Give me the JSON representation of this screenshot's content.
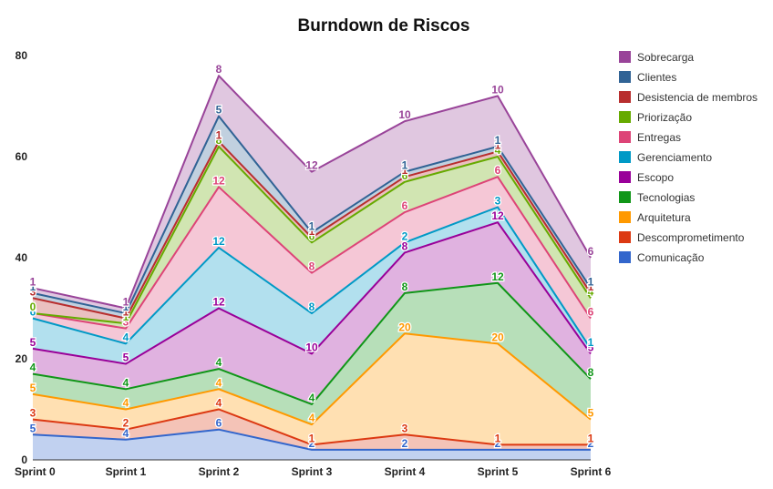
{
  "chart_data": {
    "type": "area",
    "stacked": true,
    "title": "Burndown de Riscos",
    "xlabel": "",
    "ylabel": "",
    "categories": [
      "Sprint 0",
      "Sprint 1",
      "Sprint 2",
      "Sprint 3",
      "Sprint 4",
      "Sprint 5",
      "Sprint 6"
    ],
    "ylim": [
      0,
      80
    ],
    "yticks": [
      0,
      20,
      40,
      60,
      80
    ],
    "grid": false,
    "legend_position": "right",
    "series": [
      {
        "name": "Comunicação",
        "color": "#3366cc",
        "values": [
          5,
          4,
          6,
          2,
          2,
          2,
          2
        ]
      },
      {
        "name": "Descomprometimento",
        "color": "#dc3912",
        "values": [
          3,
          2,
          4,
          1,
          3,
          1,
          1
        ]
      },
      {
        "name": "Arquitetura",
        "color": "#ff9900",
        "values": [
          5,
          4,
          4,
          4,
          20,
          20,
          5
        ]
      },
      {
        "name": "Tecnologias",
        "color": "#109618",
        "values": [
          4,
          4,
          4,
          4,
          8,
          12,
          8
        ]
      },
      {
        "name": "Escopo",
        "color": "#990099",
        "values": [
          5,
          5,
          12,
          10,
          8,
          12,
          5
        ]
      },
      {
        "name": "Gerenciamento",
        "color": "#0099c6",
        "values": [
          6,
          4,
          12,
          8,
          2,
          3,
          1
        ]
      },
      {
        "name": "Entregas",
        "color": "#dd4477",
        "values": [
          1,
          3,
          12,
          8,
          6,
          6,
          6
        ]
      },
      {
        "name": "Priorização",
        "color": "#66aa00",
        "values": [
          0,
          1,
          8,
          6,
          6,
          4,
          4
        ]
      },
      {
        "name": "Desistencia de membros",
        "color": "#b82e2e",
        "values": [
          3,
          1,
          1,
          1,
          1,
          1,
          1
        ]
      },
      {
        "name": "Clientes",
        "color": "#316395",
        "values": [
          1,
          1,
          5,
          1,
          1,
          1,
          1
        ]
      },
      {
        "name": "Sobrecarga",
        "color": "#994499",
        "values": [
          1,
          1,
          8,
          12,
          10,
          10,
          6
        ]
      }
    ]
  }
}
